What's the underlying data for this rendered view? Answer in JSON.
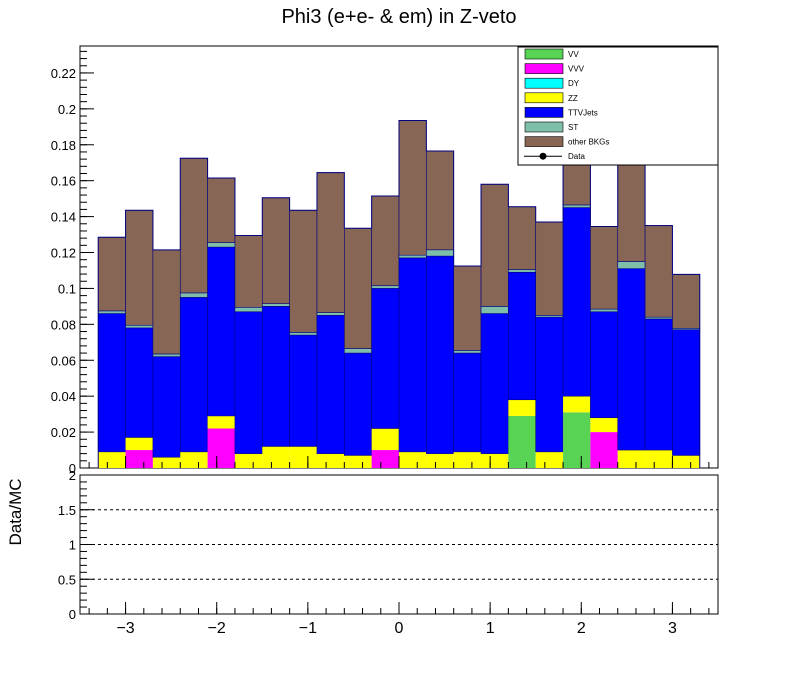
{
  "chart_data": {
    "type": "bar",
    "stacked": true,
    "title": "Phi3 (e+e- & em) in Z-veto",
    "bin_edges": [
      -3.3,
      -3.0,
      -2.7,
      -2.4,
      -2.1,
      -1.8,
      -1.5,
      -1.2,
      -0.9,
      -0.6,
      -0.3,
      0.0,
      0.3,
      0.6,
      0.9,
      1.2,
      1.5,
      1.8,
      2.1,
      2.4,
      2.7,
      3.0,
      3.3
    ],
    "xlim": [
      -3.5,
      3.5
    ],
    "ylim": [
      0,
      0.235
    ],
    "x_ticks": [
      -3,
      -2,
      -1,
      0,
      1,
      2,
      3
    ],
    "x_tick_labels": [
      "−3",
      "−2",
      "−1",
      "0",
      "1",
      "2",
      "3"
    ],
    "y_ticks": [
      0,
      0.02,
      0.04,
      0.06,
      0.08,
      0.1,
      0.12,
      0.14,
      0.16,
      0.18,
      0.2,
      0.22
    ],
    "y_tick_labels": [
      "0",
      "0.02",
      "0.04",
      "0.06",
      "0.08",
      "0.1",
      "0.12",
      "0.14",
      "0.16",
      "0.18",
      "0.2",
      "0.22"
    ],
    "series": [
      {
        "name": "VV",
        "color": "#59d354",
        "values": [
          0,
          0,
          0,
          0,
          0,
          0,
          0,
          0,
          0,
          0,
          0,
          0,
          0,
          0,
          0,
          0.029,
          0,
          0.031,
          0,
          0,
          0,
          0
        ]
      },
      {
        "name": "VVV",
        "color": "#ff00ff",
        "values": [
          0,
          0.01,
          0,
          0,
          0.022,
          0,
          0,
          0,
          0,
          0,
          0.01,
          0,
          0,
          0,
          0,
          0,
          0,
          0,
          0.02,
          0,
          0,
          0
        ]
      },
      {
        "name": "DY",
        "color": "#00ffff",
        "values": [
          0,
          0,
          0,
          0,
          0,
          0,
          0,
          0,
          0,
          0,
          0,
          0,
          0,
          0,
          0,
          0,
          0,
          0,
          0,
          0,
          0,
          0
        ]
      },
      {
        "name": "ZZ",
        "color": "#ffff00",
        "values": [
          0.009,
          0.007,
          0.006,
          0.009,
          0.007,
          0.008,
          0.012,
          0.012,
          0.008,
          0.007,
          0.012,
          0.009,
          0.008,
          0.009,
          0.008,
          0.009,
          0.009,
          0.009,
          0.008,
          0.01,
          0.01,
          0.007
        ]
      },
      {
        "name": "TTVJets",
        "color": "#0000ff",
        "values": [
          0.077,
          0.061,
          0.056,
          0.086,
          0.094,
          0.079,
          0.078,
          0.062,
          0.077,
          0.057,
          0.078,
          0.108,
          0.11,
          0.055,
          0.078,
          0.071,
          0.075,
          0.105,
          0.059,
          0.101,
          0.073,
          0.07
        ]
      },
      {
        "name": "ST",
        "color": "#7fbfa9",
        "values": [
          0.0015,
          0.0015,
          0.0015,
          0.0025,
          0.0025,
          0.0025,
          0.0015,
          0.0015,
          0.0015,
          0.0025,
          0.0015,
          0.0015,
          0.0035,
          0.0015,
          0.004,
          0.0015,
          0.001,
          0.0015,
          0.0015,
          0.004,
          0.001,
          0.0008
        ]
      },
      {
        "name": "other BKGs",
        "color": "#886655",
        "values": [
          0.041,
          0.064,
          0.058,
          0.075,
          0.036,
          0.04,
          0.059,
          0.068,
          0.078,
          0.067,
          0.05,
          0.075,
          0.055,
          0.047,
          0.068,
          0.035,
          0.052,
          0.026,
          0.046,
          0.055,
          0.051,
          0.03
        ]
      }
    ],
    "legend": {
      "placement": "top-right",
      "entries": [
        "VV",
        "VVV",
        "DY",
        "ZZ",
        "TTVJets",
        "ST",
        "other BKGs",
        "Data"
      ],
      "data_label": "Data"
    },
    "ratio_panel": {
      "ylabel": "Data/MC",
      "ylim": [
        0,
        2
      ],
      "y_ticks": [
        0,
        0.5,
        1,
        1.5,
        2
      ],
      "y_tick_labels": [
        "0",
        "0.5",
        "1",
        "1.5",
        "2"
      ],
      "dashed_lines": [
        0.5,
        1.0,
        1.5
      ]
    }
  }
}
